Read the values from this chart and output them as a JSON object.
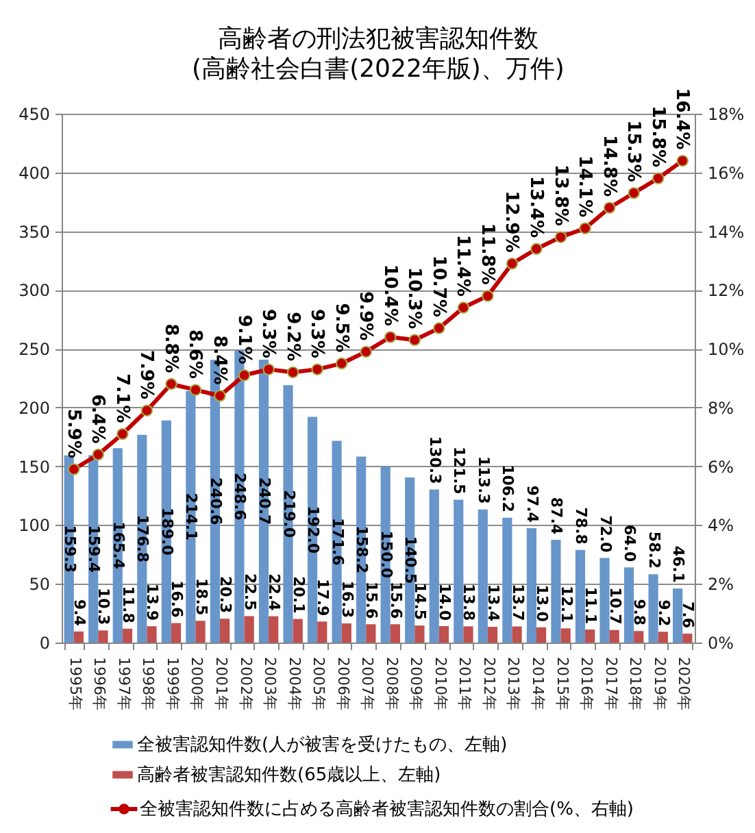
{
  "chart_data": {
    "type": "bar",
    "title": "高齢者の刑法犯被害認知件数",
    "subtitle": "(高齢社会白書(2022年版)、万件)",
    "categories": [
      "1995年",
      "1996年",
      "1997年",
      "1998年",
      "1999年",
      "2000年",
      "2001年",
      "2002年",
      "2003年",
      "2004年",
      "2005年",
      "2006年",
      "2007年",
      "2008年",
      "2009年",
      "2010年",
      "2011年",
      "2012年",
      "2013年",
      "2014年",
      "2015年",
      "2016年",
      "2017年",
      "2018年",
      "2019年",
      "2020年"
    ],
    "series": [
      {
        "name": "全被害認知件数(人が被害を受けたもの、左軸)",
        "color": "#6896cb",
        "values": [
          159.3,
          159.4,
          165.4,
          176.8,
          189.0,
          214.1,
          240.6,
          248.6,
          240.7,
          219.0,
          192.0,
          171.6,
          158.2,
          150.0,
          140.5,
          130.3,
          121.5,
          113.3,
          106.2,
          97.4,
          87.4,
          78.8,
          72.0,
          64.0,
          58.2,
          46.1
        ],
        "value_labels": [
          "159.3",
          "159.4",
          "165.4",
          "176.8",
          "189.0",
          "214.1",
          "240.6",
          "248.6",
          "240.7",
          "219.0",
          "192.0",
          "171.6",
          "158.2",
          "150.0",
          "140.5",
          "130.3",
          "121.5",
          "113.3",
          "106.2",
          "97.4",
          "87.4",
          "78.8",
          "72.0",
          "64.0",
          "58.2",
          "46.1"
        ]
      },
      {
        "name": "高齢者被害認知件数(65歳以上、左軸)",
        "color": "#c0504d",
        "values": [
          9.4,
          10.3,
          11.8,
          13.9,
          16.6,
          18.5,
          20.3,
          22.5,
          22.4,
          20.1,
          17.9,
          16.3,
          15.6,
          15.6,
          14.5,
          14.0,
          13.8,
          13.4,
          13.7,
          13.0,
          12.1,
          11.1,
          10.7,
          9.8,
          9.2,
          7.6
        ],
        "value_labels": [
          "9.4",
          "10.3",
          "11.8",
          "13.9",
          "16.6",
          "18.5",
          "20.3",
          "22.5",
          "22.4",
          "20.1",
          "17.9",
          "16.3",
          "15.6",
          "15.6",
          "14.5",
          "14.0",
          "13.8",
          "13.4",
          "13.7",
          "13.0",
          "12.1",
          "11.1",
          "10.7",
          "9.8",
          "9.2",
          "7.6"
        ]
      },
      {
        "name": "全被害認知件数に占める高齢者被害認知件数の割合(%、右軸)",
        "type": "line",
        "axis": "y2",
        "color": "#c00000",
        "values": [
          5.9,
          6.4,
          7.1,
          7.9,
          8.8,
          8.6,
          8.4,
          9.1,
          9.3,
          9.2,
          9.3,
          9.5,
          9.9,
          10.4,
          10.3,
          10.7,
          11.4,
          11.8,
          12.9,
          13.4,
          13.8,
          14.1,
          14.8,
          15.3,
          15.8,
          16.4
        ],
        "value_labels": [
          "5.9%",
          "6.4%",
          "7.1%",
          "7.9%",
          "8.8%",
          "8.6%",
          "8.4%",
          "9.1%",
          "9.3%",
          "9.2%",
          "9.3%",
          "9.5%",
          "9.9%",
          "10.4%",
          "10.3%",
          "10.7%",
          "11.4%",
          "11.8%",
          "12.9%",
          "13.4%",
          "13.8%",
          "14.1%",
          "14.8%",
          "15.3%",
          "15.8%",
          "16.4%"
        ]
      }
    ],
    "ylim": [
      0,
      450
    ],
    "yticks": [
      0,
      50,
      100,
      150,
      200,
      250,
      300,
      350,
      400,
      450
    ],
    "y2lim": [
      0,
      18
    ],
    "y2ticks": [
      {
        "value": 0,
        "label": "0%"
      },
      {
        "value": 2,
        "label": "2%"
      },
      {
        "value": 4,
        "label": "4%"
      },
      {
        "value": 6,
        "label": "6%"
      },
      {
        "value": 8,
        "label": "8%"
      },
      {
        "value": 10,
        "label": "10%"
      },
      {
        "value": 12,
        "label": "12%"
      },
      {
        "value": 14,
        "label": "14%"
      },
      {
        "value": 16,
        "label": "16%"
      },
      {
        "value": 18,
        "label": "18%"
      }
    ],
    "grid": "y",
    "legend": "bottom",
    "marker": "circle"
  }
}
